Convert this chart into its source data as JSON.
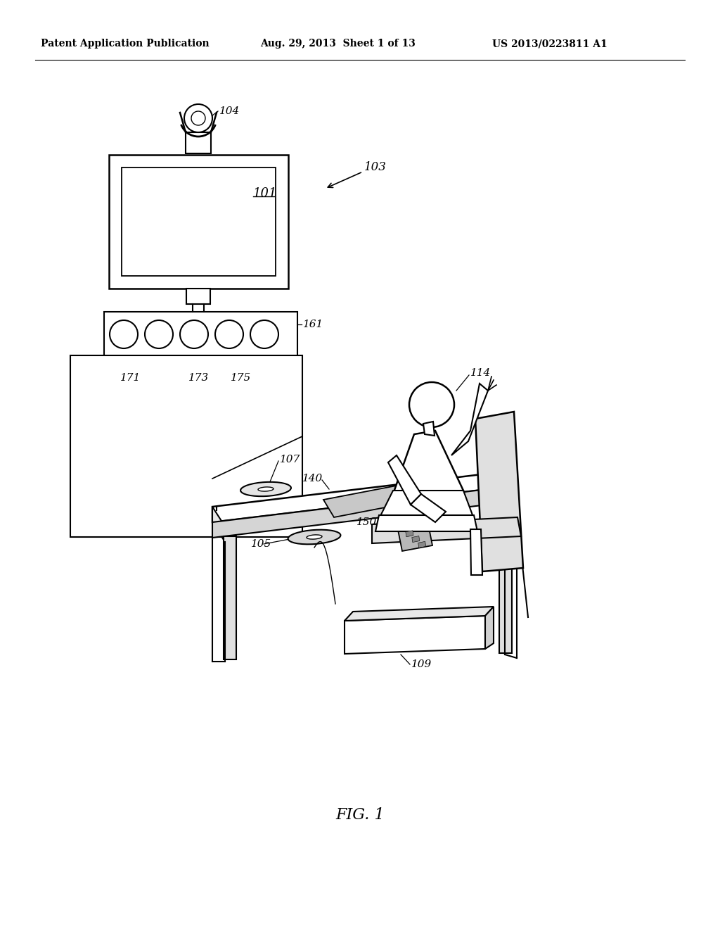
{
  "header_left": "Patent Application Publication",
  "header_center": "Aug. 29, 2013  Sheet 1 of 13",
  "header_right": "US 2013/0223811 A1",
  "title": "FIG. 1",
  "bg": "#ffffff"
}
